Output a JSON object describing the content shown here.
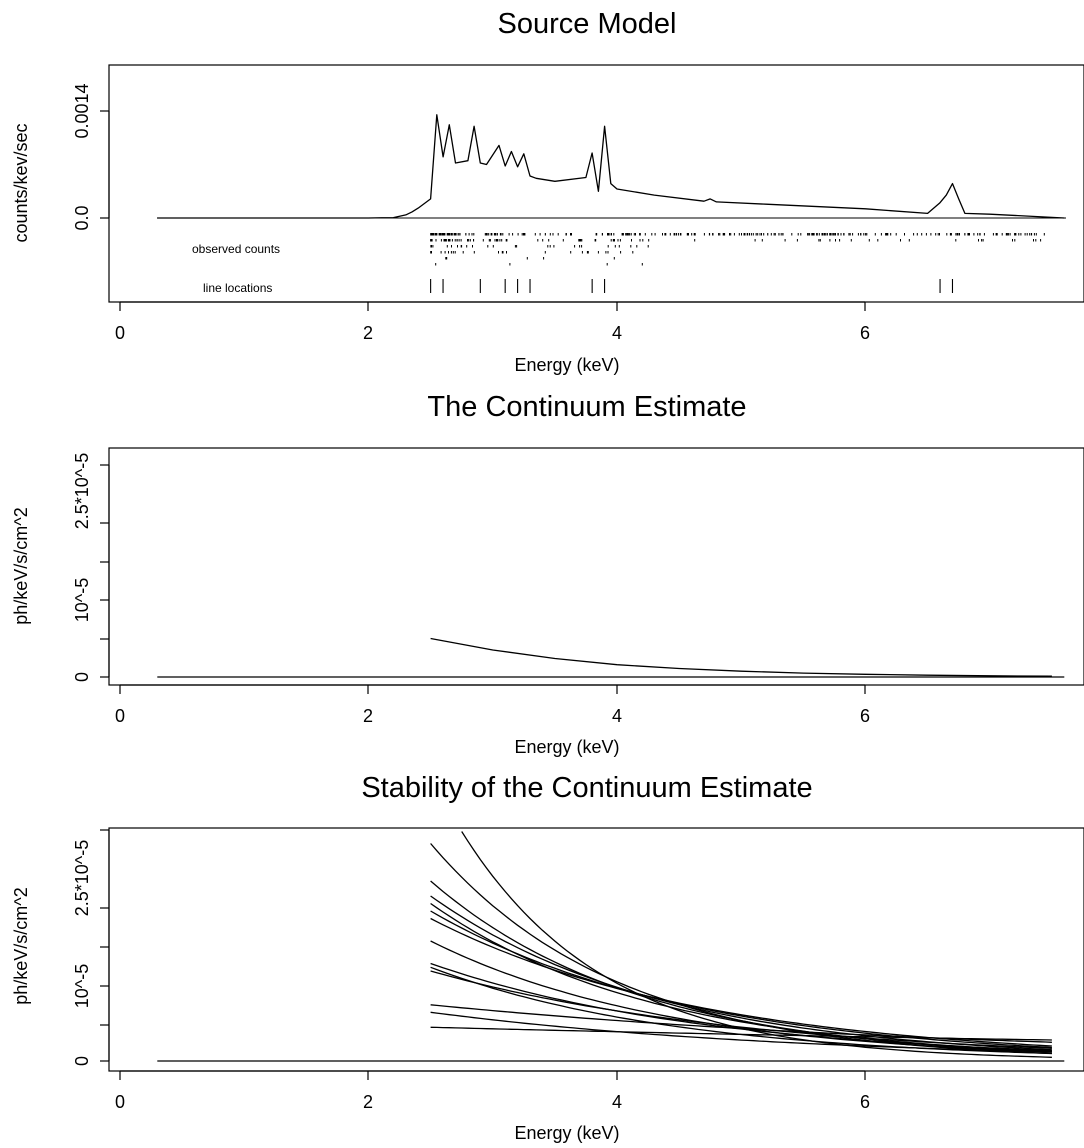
{
  "chart_data": [
    {
      "type": "line",
      "title": "Source Model",
      "xlabel": "Energy (keV)",
      "ylabel": "counts/kev/sec",
      "xlim": [
        0,
        7.6
      ],
      "ylim": [
        -0.00074,
        0.00142
      ],
      "x_ticks": [
        "0",
        "2",
        "4",
        "6"
      ],
      "y_ticks": [
        "0.0",
        "0.0014"
      ],
      "y_tick_values": [
        0.0,
        0.0014
      ],
      "grid": false,
      "legend": "none",
      "annotations": {
        "observed_counts_label": "observed counts",
        "line_locations_label": "line locations"
      },
      "series": [
        {
          "x": [
            0.3,
            2.0,
            2.2,
            2.3,
            2.35,
            2.4,
            2.5,
            2.55,
            2.6,
            2.65,
            2.7,
            2.8,
            2.85,
            2.9,
            2.95,
            3.05,
            3.1,
            3.15,
            3.2,
            3.25,
            3.3,
            3.35,
            3.5,
            3.75,
            3.8,
            3.85,
            3.9,
            3.95,
            4.0,
            4.3,
            4.7,
            4.75,
            4.8,
            5.2,
            6.0,
            6.5,
            6.6,
            6.65,
            6.7,
            6.75,
            6.8,
            7.0,
            7.6
          ],
          "y": [
            0.0,
            0.0,
            5e-06,
            4e-05,
            8e-05,
            0.00013,
            0.00025,
            0.00135,
            0.0008,
            0.00122,
            0.00072,
            0.00075,
            0.0012,
            0.00072,
            0.0007,
            0.00095,
            0.00068,
            0.00087,
            0.00067,
            0.00084,
            0.00055,
            0.00052,
            0.00048,
            0.00053,
            0.00085,
            0.00035,
            0.0012,
            0.00045,
            0.00038,
            0.0003,
            0.00022,
            0.00025,
            0.00021,
            0.00018,
            0.00012,
            6e-05,
            0.0002,
            0.0003,
            0.00045,
            0.00025,
            6e-05,
            5e-05,
            0.0
          ]
        }
      ],
      "line_locations": [
        2.5,
        2.6,
        2.9,
        3.1,
        3.2,
        3.3,
        3.8,
        3.9,
        6.6,
        6.7
      ],
      "observed_counts_range": [
        2.5,
        7.45
      ]
    },
    {
      "type": "line",
      "title": "The Continuum Estimate",
      "xlabel": "Energy (keV)",
      "ylabel": "ph/keV/s/cm^2",
      "xlim": [
        0,
        7.6
      ],
      "ylim": [
        0,
        3.5e-05
      ],
      "x_ticks": [
        "0",
        "2",
        "4",
        "6"
      ],
      "y_ticks": [
        "0",
        "10^-5",
        "2.5*10^-5"
      ],
      "y_tick_values": [
        0,
        1e-05,
        2.5e-05
      ],
      "grid": false,
      "legend": "none",
      "series": [
        {
          "x": [
            0.3,
            2.5,
            7.6
          ],
          "y": [
            0,
            0,
            0
          ]
        },
        {
          "x": [
            2.5,
            3.0,
            3.5,
            4.0,
            4.5,
            5.0,
            5.5,
            6.0,
            6.5,
            7.0,
            7.5
          ],
          "y": [
            5e-06,
            3.5e-06,
            2.4e-06,
            1.6e-06,
            1.1e-06,
            7.5e-07,
            5e-07,
            3.5e-07,
            2.3e-07,
            1.5e-07,
            1e-07
          ]
        }
      ]
    },
    {
      "type": "line",
      "title": "Stability of the Continuum Estimate",
      "xlabel": "Energy (keV)",
      "ylabel": "ph/keV/s/cm^2",
      "xlim": [
        0,
        7.6
      ],
      "ylim": [
        0,
        3.5e-05
      ],
      "x_ticks": [
        "0",
        "2",
        "4",
        "6"
      ],
      "y_ticks": [
        "0",
        "10^-5",
        "2.5*10^-5"
      ],
      "y_tick_values": [
        0,
        1e-05,
        2.5e-05
      ],
      "grid": false,
      "legend": "none",
      "baseline": {
        "x": [
          0.3,
          7.6
        ],
        "y": [
          0,
          0
        ]
      },
      "curve_family": {
        "x_start": 2.5,
        "x_end": 7.5,
        "start_values": [
          3.8e-05,
          2.9e-05,
          2.4e-05,
          2.2e-05,
          2.1e-05,
          2e-05,
          1.9e-05,
          1.6e-05,
          1.3e-05,
          1.25e-05,
          1.2e-05,
          7.5e-06,
          6.5e-06,
          4.5e-06
        ],
        "end_values": [
          5e-07,
          1e-06,
          1.2e-06,
          1.5e-06,
          1.3e-06,
          1.8e-06,
          2e-06,
          1.2e-06,
          1.4e-06,
          1e-06,
          1.7e-06,
          2.5e-06,
          1.2e-06,
          2.8e-06
        ]
      }
    }
  ]
}
